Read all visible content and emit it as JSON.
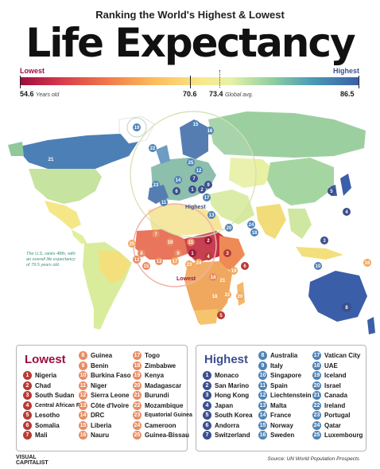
{
  "header": {
    "subtitle": "Ranking the World's Highest & Lowest",
    "title": "Life Expectancy"
  },
  "scale": {
    "lowest_label": "Lowest",
    "highest_label": "Highest",
    "min_value": "54.6",
    "min_unit": "Years old",
    "mid_value": "70.6",
    "avg_value": "73.4",
    "avg_unit": "Global avg.",
    "max_value": "86.5"
  },
  "colors": {
    "lowest": "#9e0e3d",
    "highest": "#3b5ea8",
    "lowest_badge": "#b83a33",
    "lowest_badge_light": "#e88c63",
    "highest_badge": "#3b4f8f",
    "highest_badge_light": "#4f83b5"
  },
  "map": {
    "highest_callout": "Highest",
    "lowest_callout": "Lowest",
    "note": "The U.S. ranks 48th, with an overall life expectancy of 79.5 years old."
  },
  "lowest": {
    "title": "Lowest",
    "items": [
      {
        "rank": "1",
        "name": "Nigeria"
      },
      {
        "rank": "2",
        "name": "Chad"
      },
      {
        "rank": "3",
        "name": "South Sudan"
      },
      {
        "rank": "4",
        "name": "Central African Rep"
      },
      {
        "rank": "5",
        "name": "Lesotho"
      },
      {
        "rank": "6",
        "name": "Somalia"
      },
      {
        "rank": "7",
        "name": "Mali"
      },
      {
        "rank": "8",
        "name": "Guinea"
      },
      {
        "rank": "9",
        "name": "Benin"
      },
      {
        "rank": "10",
        "name": "Burkina Faso"
      },
      {
        "rank": "11",
        "name": "Niger"
      },
      {
        "rank": "12",
        "name": "Sierra Leone"
      },
      {
        "rank": "13",
        "name": "Côte d'Ivoire"
      },
      {
        "rank": "14",
        "name": "DRC"
      },
      {
        "rank": "15",
        "name": "Liberia"
      },
      {
        "rank": "16",
        "name": "Nauru"
      },
      {
        "rank": "17",
        "name": "Togo"
      },
      {
        "rank": "18",
        "name": "Zimbabwe"
      },
      {
        "rank": "19",
        "name": "Kenya"
      },
      {
        "rank": "20",
        "name": "Madagascar"
      },
      {
        "rank": "21",
        "name": "Burundi"
      },
      {
        "rank": "22",
        "name": "Mozambique"
      },
      {
        "rank": "23",
        "name": "Equatorial Guinea"
      },
      {
        "rank": "24",
        "name": "Cameroon"
      },
      {
        "rank": "25",
        "name": "Guinea-Bissau"
      }
    ]
  },
  "highest": {
    "title": "Highest",
    "items": [
      {
        "rank": "1",
        "name": "Monaco"
      },
      {
        "rank": "2",
        "name": "San Marino"
      },
      {
        "rank": "3",
        "name": "Hong Kong"
      },
      {
        "rank": "4",
        "name": "Japan"
      },
      {
        "rank": "5",
        "name": "South Korea"
      },
      {
        "rank": "6",
        "name": "Andorra"
      },
      {
        "rank": "7",
        "name": "Switzerland"
      },
      {
        "rank": "8",
        "name": "Australia"
      },
      {
        "rank": "9",
        "name": "Italy"
      },
      {
        "rank": "10",
        "name": "Singapore"
      },
      {
        "rank": "11",
        "name": "Spain"
      },
      {
        "rank": "12",
        "name": "Liechtenstein"
      },
      {
        "rank": "13",
        "name": "Malta"
      },
      {
        "rank": "14",
        "name": "France"
      },
      {
        "rank": "15",
        "name": "Norway"
      },
      {
        "rank": "16",
        "name": "Sweden"
      },
      {
        "rank": "17",
        "name": "Vatican City"
      },
      {
        "rank": "18",
        "name": "UAE"
      },
      {
        "rank": "19",
        "name": "Iceland"
      },
      {
        "rank": "20",
        "name": "Israel"
      },
      {
        "rank": "21",
        "name": "Canada"
      },
      {
        "rank": "22",
        "name": "Ireland"
      },
      {
        "rank": "23",
        "name": "Portugal"
      },
      {
        "rank": "24",
        "name": "Qatar"
      },
      {
        "rank": "25",
        "name": "Luxembourg"
      }
    ]
  },
  "footer": {
    "logo_line1": "VISUAL",
    "logo_line2": "CAPITALIST",
    "source": "Source: UN World Population Prospects"
  }
}
